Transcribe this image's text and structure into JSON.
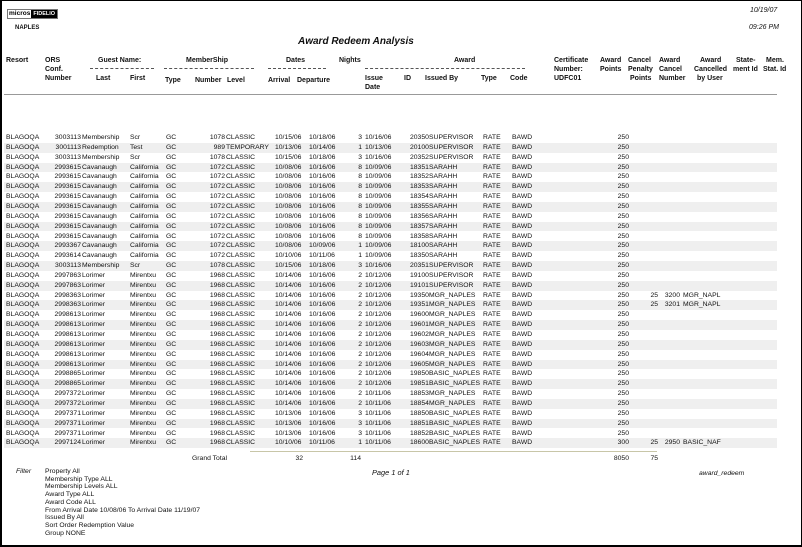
{
  "header": {
    "logo_left": "micros",
    "logo_right": "FIDELIO",
    "property": "NAPLES",
    "title": "Award Redeem Analysis",
    "date": "10/19/07",
    "time": "09:26 PM"
  },
  "columns": {
    "resort": "Resort",
    "ors": "ORS",
    "conf": "Conf.",
    "number": "Number",
    "guest_name": "Guest Name:",
    "last": "Last",
    "first": "First",
    "membership": "MemberShip",
    "mtype": "Type",
    "mnumber": "Number",
    "level": "Level",
    "dates": "Dates",
    "arrival": "Arrival",
    "departure": "Departure",
    "nights": "Nights",
    "award": "Award",
    "issue": "Issue",
    "date": "Date",
    "id": "ID",
    "issued_by": "Issued By",
    "atype": "Type",
    "code": "Code",
    "cert1": "Certificate",
    "cert2": "Number:",
    "cert3": "UDFC01",
    "ap1": "Award",
    "ap2": "Points",
    "cp1": "Cancel",
    "cp2": "Penalty",
    "cp3": "Points",
    "ac1": "Award",
    "ac2": "Cancel",
    "ac3": "Number",
    "au1": "Award",
    "au2": "Cancelled",
    "au3": "by User",
    "st1": "State-",
    "st2": "ment Id",
    "ms1": "Mem.",
    "ms2": "Stat. Id"
  },
  "rows": [
    [
      "BLAGOQA",
      "3003113",
      "Membership",
      "Scr",
      "GC",
      "1078",
      "CLASSIC",
      "10/15/06",
      "10/18/06",
      "3",
      "10/16/06",
      "20350",
      "SUPERVISOR",
      "RATE",
      "BAWD",
      "250",
      "",
      "",
      ""
    ],
    [
      "BLAGOQA",
      "3001113",
      "Redemption",
      "Test",
      "GC",
      "989",
      "TEMPORARY",
      "10/13/06",
      "10/14/06",
      "1",
      "10/13/06",
      "20100",
      "SUPERVISOR",
      "RATE",
      "BAWD",
      "250",
      "",
      "",
      ""
    ],
    [
      "BLAGOQA",
      "3003113",
      "Membership",
      "Scr",
      "GC",
      "1078",
      "CLASSIC",
      "10/15/06",
      "10/18/06",
      "3",
      "10/16/06",
      "20352",
      "SUPERVISOR",
      "RATE",
      "BAWD",
      "250",
      "",
      "",
      ""
    ],
    [
      "BLAGOQA",
      "2993615",
      "Cavanaugh",
      "California",
      "GC",
      "1072",
      "CLASSIC",
      "10/08/06",
      "10/16/06",
      "8",
      "10/09/06",
      "18351",
      "SARAHH",
      "RATE",
      "BAWD",
      "250",
      "",
      "",
      ""
    ],
    [
      "BLAGOQA",
      "2993615",
      "Cavanaugh",
      "California",
      "GC",
      "1072",
      "CLASSIC",
      "10/08/06",
      "10/16/06",
      "8",
      "10/09/06",
      "18352",
      "SARAHH",
      "RATE",
      "BAWD",
      "250",
      "",
      "",
      ""
    ],
    [
      "BLAGOQA",
      "2993615",
      "Cavanaugh",
      "California",
      "GC",
      "1072",
      "CLASSIC",
      "10/08/06",
      "10/16/06",
      "8",
      "10/09/06",
      "18353",
      "SARAHH",
      "RATE",
      "BAWD",
      "250",
      "",
      "",
      ""
    ],
    [
      "BLAGOQA",
      "2993615",
      "Cavanaugh",
      "California",
      "GC",
      "1072",
      "CLASSIC",
      "10/08/06",
      "10/16/06",
      "8",
      "10/09/06",
      "18354",
      "SARAHH",
      "RATE",
      "BAWD",
      "250",
      "",
      "",
      ""
    ],
    [
      "BLAGOQA",
      "2993615",
      "Cavanaugh",
      "California",
      "GC",
      "1072",
      "CLASSIC",
      "10/08/06",
      "10/16/06",
      "8",
      "10/09/06",
      "18355",
      "SARAHH",
      "RATE",
      "BAWD",
      "250",
      "",
      "",
      ""
    ],
    [
      "BLAGOQA",
      "2993615",
      "Cavanaugh",
      "California",
      "GC",
      "1072",
      "CLASSIC",
      "10/08/06",
      "10/16/06",
      "8",
      "10/09/06",
      "18356",
      "SARAHH",
      "RATE",
      "BAWD",
      "250",
      "",
      "",
      ""
    ],
    [
      "BLAGOQA",
      "2993615",
      "Cavanaugh",
      "California",
      "GC",
      "1072",
      "CLASSIC",
      "10/08/06",
      "10/16/06",
      "8",
      "10/09/06",
      "18357",
      "SARAHH",
      "RATE",
      "BAWD",
      "250",
      "",
      "",
      ""
    ],
    [
      "BLAGOQA",
      "2993615",
      "Cavanaugh",
      "California",
      "GC",
      "1072",
      "CLASSIC",
      "10/08/06",
      "10/16/06",
      "8",
      "10/09/06",
      "18358",
      "SARAHH",
      "RATE",
      "BAWD",
      "250",
      "",
      "",
      ""
    ],
    [
      "BLAGOQA",
      "2993367",
      "Cavanaugh",
      "California",
      "GC",
      "1072",
      "CLASSIC",
      "10/08/06",
      "10/09/06",
      "1",
      "10/09/06",
      "18100",
      "SARAHH",
      "RATE",
      "BAWD",
      "250",
      "",
      "",
      ""
    ],
    [
      "BLAGOQA",
      "2993614",
      "Cavanaugh",
      "California",
      "GC",
      "1072",
      "CLASSIC",
      "10/10/06",
      "10/11/06",
      "1",
      "10/09/06",
      "18350",
      "SARAHH",
      "RATE",
      "BAWD",
      "250",
      "",
      "",
      ""
    ],
    [
      "BLAGOQA",
      "3003113",
      "Membership",
      "Scr",
      "GC",
      "1078",
      "CLASSIC",
      "10/15/06",
      "10/18/06",
      "3",
      "10/16/06",
      "20351",
      "SUPERVISOR",
      "RATE",
      "BAWD",
      "250",
      "",
      "",
      ""
    ],
    [
      "BLAGOQA",
      "2997863",
      "Lorimer",
      "Mirentxu",
      "GC",
      "1968",
      "CLASSIC",
      "10/14/06",
      "10/16/06",
      "2",
      "10/12/06",
      "19100",
      "SUPERVISOR",
      "RATE",
      "BAWD",
      "250",
      "",
      "",
      ""
    ],
    [
      "BLAGOQA",
      "2997863",
      "Lorimer",
      "Mirentxu",
      "GC",
      "1968",
      "CLASSIC",
      "10/14/06",
      "10/16/06",
      "2",
      "10/12/06",
      "19101",
      "SUPERVISOR",
      "RATE",
      "BAWD",
      "250",
      "",
      "",
      ""
    ],
    [
      "BLAGOQA",
      "2998363",
      "Lorimer",
      "Mirentxu",
      "GC",
      "1968",
      "CLASSIC",
      "10/14/06",
      "10/16/06",
      "2",
      "10/12/06",
      "19350",
      "MGR_NAPLES",
      "RATE",
      "BAWD",
      "250",
      "25",
      "3200",
      "MGR_NAPL"
    ],
    [
      "BLAGOQA",
      "2998363",
      "Lorimer",
      "Mirentxu",
      "GC",
      "1968",
      "CLASSIC",
      "10/14/06",
      "10/16/06",
      "2",
      "10/12/06",
      "19351",
      "MGR_NAPLES",
      "RATE",
      "BAWD",
      "250",
      "25",
      "3201",
      "MGR_NAPL"
    ],
    [
      "BLAGOQA",
      "2998613",
      "Lorimer",
      "Mirentxu",
      "GC",
      "1968",
      "CLASSIC",
      "10/14/06",
      "10/16/06",
      "2",
      "10/12/06",
      "19600",
      "MGR_NAPLES",
      "RATE",
      "BAWD",
      "250",
      "",
      "",
      ""
    ],
    [
      "BLAGOQA",
      "2998613",
      "Lorimer",
      "Mirentxu",
      "GC",
      "1968",
      "CLASSIC",
      "10/14/06",
      "10/16/06",
      "2",
      "10/12/06",
      "19601",
      "MGR_NAPLES",
      "RATE",
      "BAWD",
      "250",
      "",
      "",
      ""
    ],
    [
      "BLAGOQA",
      "2998613",
      "Lorimer",
      "Mirentxu",
      "GC",
      "1968",
      "CLASSIC",
      "10/14/06",
      "10/16/06",
      "2",
      "10/12/06",
      "19602",
      "MGR_NAPLES",
      "RATE",
      "BAWD",
      "250",
      "",
      "",
      ""
    ],
    [
      "BLAGOQA",
      "2998613",
      "Lorimer",
      "Mirentxu",
      "GC",
      "1968",
      "CLASSIC",
      "10/14/06",
      "10/16/06",
      "2",
      "10/12/06",
      "19603",
      "MGR_NAPLES",
      "RATE",
      "BAWD",
      "250",
      "",
      "",
      ""
    ],
    [
      "BLAGOQA",
      "2998613",
      "Lorimer",
      "Mirentxu",
      "GC",
      "1968",
      "CLASSIC",
      "10/14/06",
      "10/16/06",
      "2",
      "10/12/06",
      "19604",
      "MGR_NAPLES",
      "RATE",
      "BAWD",
      "250",
      "",
      "",
      ""
    ],
    [
      "BLAGOQA",
      "2998613",
      "Lorimer",
      "Mirentxu",
      "GC",
      "1968",
      "CLASSIC",
      "10/14/06",
      "10/16/06",
      "2",
      "10/12/06",
      "19605",
      "MGR_NAPLES",
      "RATE",
      "BAWD",
      "250",
      "",
      "",
      ""
    ],
    [
      "BLAGOQA",
      "2998865",
      "Lorimer",
      "Mirentxu",
      "GC",
      "1968",
      "CLASSIC",
      "10/14/06",
      "10/16/06",
      "2",
      "10/12/06",
      "19850",
      "BASIC_NAPLES",
      "RATE",
      "BAWD",
      "250",
      "",
      "",
      ""
    ],
    [
      "BLAGOQA",
      "2998865",
      "Lorimer",
      "Mirentxu",
      "GC",
      "1968",
      "CLASSIC",
      "10/14/06",
      "10/16/06",
      "2",
      "10/12/06",
      "19851",
      "BASIC_NAPLES",
      "RATE",
      "BAWD",
      "250",
      "",
      "",
      ""
    ],
    [
      "BLAGOQA",
      "2997372",
      "Lorimer",
      "Mirentxu",
      "GC",
      "1968",
      "CLASSIC",
      "10/14/06",
      "10/16/06",
      "2",
      "10/11/06",
      "18853",
      "MGR_NAPLES",
      "RATE",
      "BAWD",
      "250",
      "",
      "",
      ""
    ],
    [
      "BLAGOQA",
      "2997372",
      "Lorimer",
      "Mirentxu",
      "GC",
      "1968",
      "CLASSIC",
      "10/14/06",
      "10/16/06",
      "2",
      "10/11/06",
      "18854",
      "MGR_NAPLES",
      "RATE",
      "BAWD",
      "250",
      "",
      "",
      ""
    ],
    [
      "BLAGOQA",
      "2997371",
      "Lorimer",
      "Mirentxu",
      "GC",
      "1968",
      "CLASSIC",
      "10/13/06",
      "10/16/06",
      "3",
      "10/11/06",
      "18850",
      "BASIC_NAPLES",
      "RATE",
      "BAWD",
      "250",
      "",
      "",
      ""
    ],
    [
      "BLAGOQA",
      "2997371",
      "Lorimer",
      "Mirentxu",
      "GC",
      "1968",
      "CLASSIC",
      "10/13/06",
      "10/16/06",
      "3",
      "10/11/06",
      "18851",
      "BASIC_NAPLES",
      "RATE",
      "BAWD",
      "250",
      "",
      "",
      ""
    ],
    [
      "BLAGOQA",
      "2997371",
      "Lorimer",
      "Mirentxu",
      "GC",
      "1968",
      "CLASSIC",
      "10/13/06",
      "10/16/06",
      "3",
      "10/11/06",
      "18852",
      "BASIC_NAPLES",
      "RATE",
      "BAWD",
      "250",
      "",
      "",
      ""
    ],
    [
      "BLAGOQA",
      "2997124",
      "Lorimer",
      "Mirentxu",
      "GC",
      "1968",
      "CLASSIC",
      "10/10/06",
      "10/11/06",
      "1",
      "10/11/06",
      "18600",
      "BASIC_NAPLES",
      "RATE",
      "BAWD",
      "300",
      "25",
      "2950",
      "BASIC_NAF"
    ]
  ],
  "totals": {
    "label": "Grand Total",
    "count": "32",
    "nights": "114",
    "points": "8050",
    "penalty": "75"
  },
  "footer": {
    "filter_label": "Filter",
    "filters": [
      "Property All",
      "Membership Type  ALL",
      "Membership Levels  ALL",
      "Award Type  ALL",
      "Award Code  ALL",
      "From Arrival Date 10/08/06   To Arrival Date 11/19/07",
      "Issued By All",
      "Sort Order     Redemption Value",
      "Group NONE"
    ],
    "page": "Page 1 of 1",
    "report_name": "award_redeem"
  }
}
